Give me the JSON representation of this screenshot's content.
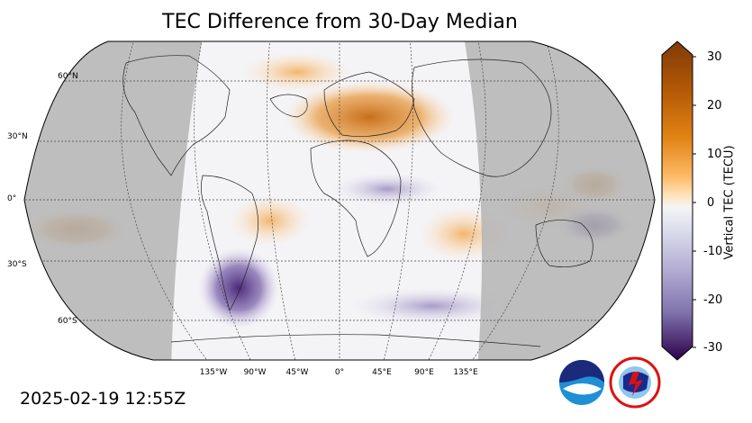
{
  "title": "TEC Difference from 30-Day Median",
  "timestamp": "2025-02-19 12:55Z",
  "colorbar": {
    "label": "Vertical TEC (TECU)",
    "ticks": [
      "30",
      "20",
      "10",
      "0",
      "-10",
      "-20",
      "-30"
    ],
    "min": -30,
    "max": 30,
    "neg_color": "#2d0a4e",
    "mid_color": "#f5f5f5",
    "pos_color": "#7f3b08"
  },
  "latitude_labels": [
    "60°N",
    "30°N",
    "0°",
    "30°S",
    "60°S"
  ],
  "longitude_labels": [
    "135°W",
    "90°W",
    "45°W",
    "0°",
    "45°E",
    "90°E",
    "135°E"
  ],
  "logos": {
    "noaa": "NOAA",
    "nws": "NATIONAL WEATHER SERVICE"
  },
  "colors": {
    "night_shade": "#b4b4b4",
    "orange_anomaly": "#e0963a",
    "purple_anomaly": "#6b4c93"
  }
}
